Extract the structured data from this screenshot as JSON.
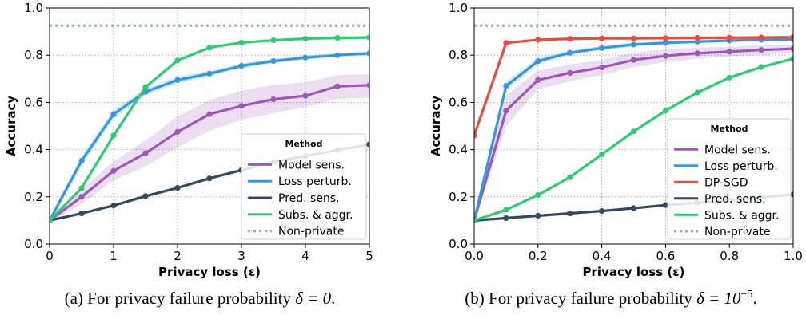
{
  "chart_data": [
    {
      "type": "line",
      "xlabel": "Privacy loss (ε)",
      "ylabel": "Accuracy",
      "xlim": [
        0,
        5
      ],
      "ylim": [
        0,
        1.0
      ],
      "xticks": [
        "0",
        "1",
        "2",
        "3",
        "4",
        "5"
      ],
      "yticks": [
        "0.0",
        "0.2",
        "0.4",
        "0.6",
        "0.8",
        "1.0"
      ],
      "grid": true,
      "legend_title": "Method",
      "legend_position": "lower-right",
      "series": [
        {
          "name": "Model sens.",
          "color": "#9b59b6",
          "band": true,
          "x": [
            0,
            0.5,
            1,
            1.5,
            2,
            2.5,
            3,
            3.5,
            4,
            4.5,
            5
          ],
          "y": [
            0.1,
            0.2,
            0.31,
            0.385,
            0.475,
            0.55,
            0.585,
            0.613,
            0.628,
            0.668,
            0.673
          ],
          "band_low": [
            0.09,
            0.17,
            0.27,
            0.33,
            0.41,
            0.48,
            0.525,
            0.555,
            0.58,
            0.615,
            0.62
          ],
          "band_high": [
            0.11,
            0.23,
            0.35,
            0.44,
            0.54,
            0.61,
            0.65,
            0.675,
            0.685,
            0.715,
            0.72
          ]
        },
        {
          "name": "Loss perturb.",
          "color": "#3498db",
          "band": true,
          "x": [
            0,
            0.5,
            1,
            1.5,
            2,
            2.5,
            3,
            3.5,
            4,
            4.5,
            5
          ],
          "y": [
            0.1,
            0.353,
            0.55,
            0.645,
            0.695,
            0.722,
            0.755,
            0.775,
            0.79,
            0.8,
            0.808
          ],
          "band_low": [
            0.09,
            0.33,
            0.53,
            0.63,
            0.68,
            0.71,
            0.745,
            0.765,
            0.782,
            0.792,
            0.8
          ],
          "band_high": [
            0.11,
            0.375,
            0.57,
            0.66,
            0.71,
            0.735,
            0.765,
            0.785,
            0.798,
            0.808,
            0.816
          ]
        },
        {
          "name": "Pred. sens.",
          "color": "#34495e",
          "band": false,
          "x": [
            0,
            0.5,
            1,
            1.5,
            2,
            2.5,
            3,
            3.5,
            4,
            4.5,
            5
          ],
          "y": [
            0.1,
            0.13,
            0.163,
            0.203,
            0.238,
            0.278,
            0.313,
            0.348,
            0.373,
            0.398,
            0.422
          ]
        },
        {
          "name": "Subs. & aggr.",
          "color": "#2ecc71",
          "band": false,
          "x": [
            0,
            0.5,
            1,
            1.5,
            2,
            2.5,
            3,
            3.5,
            4,
            4.5,
            5
          ],
          "y": [
            0.1,
            0.237,
            0.46,
            0.665,
            0.778,
            0.832,
            0.853,
            0.863,
            0.87,
            0.873,
            0.875
          ]
        },
        {
          "name": "Non-private",
          "color": "#95a5a6",
          "dashed": true,
          "band": false,
          "x": [
            0,
            5
          ],
          "y": [
            0.925,
            0.925
          ]
        }
      ]
    },
    {
      "type": "line",
      "xlabel": "Privacy loss (ε)",
      "ylabel": "Accuracy",
      "xlim": [
        0,
        1.0
      ],
      "ylim": [
        0,
        1.0
      ],
      "xticks": [
        "0.0",
        "0.2",
        "0.4",
        "0.6",
        "0.8",
        "1.0"
      ],
      "yticks": [
        "0.0",
        "0.2",
        "0.4",
        "0.6",
        "0.8",
        "1.0"
      ],
      "grid": true,
      "legend_title": "Method",
      "legend_position": "lower-right",
      "series": [
        {
          "name": "Model sens.",
          "color": "#9b59b6",
          "band": true,
          "x": [
            0,
            0.1,
            0.2,
            0.3,
            0.4,
            0.5,
            0.6,
            0.7,
            0.8,
            0.9,
            1.0
          ],
          "y": [
            0.1,
            0.565,
            0.695,
            0.725,
            0.748,
            0.78,
            0.797,
            0.808,
            0.815,
            0.822,
            0.827
          ],
          "band_low": [
            0.09,
            0.5,
            0.655,
            0.69,
            0.715,
            0.75,
            0.77,
            0.785,
            0.795,
            0.8,
            0.81
          ],
          "band_high": [
            0.11,
            0.63,
            0.735,
            0.76,
            0.78,
            0.81,
            0.825,
            0.832,
            0.835,
            0.842,
            0.845
          ]
        },
        {
          "name": "Loss perturb.",
          "color": "#3498db",
          "band": true,
          "x": [
            0,
            0.1,
            0.2,
            0.3,
            0.4,
            0.5,
            0.6,
            0.7,
            0.8,
            0.9,
            1.0
          ],
          "y": [
            0.1,
            0.67,
            0.775,
            0.81,
            0.83,
            0.845,
            0.852,
            0.857,
            0.862,
            0.865,
            0.867
          ],
          "band_low": [
            0.09,
            0.65,
            0.76,
            0.8,
            0.82,
            0.837,
            0.845,
            0.85,
            0.855,
            0.858,
            0.86
          ],
          "band_high": [
            0.11,
            0.69,
            0.79,
            0.82,
            0.84,
            0.853,
            0.859,
            0.864,
            0.869,
            0.872,
            0.874
          ]
        },
        {
          "name": "DP-SGD",
          "color": "#e74c3c",
          "band": false,
          "x": [
            0,
            0.1,
            0.2,
            0.3,
            0.4,
            0.5,
            0.6,
            0.7,
            0.8,
            0.9,
            1.0
          ],
          "y": [
            0.46,
            0.852,
            0.865,
            0.869,
            0.871,
            0.871,
            0.872,
            0.873,
            0.874,
            0.875,
            0.876
          ]
        },
        {
          "name": "Pred. sens.",
          "color": "#34495e",
          "band": false,
          "x": [
            0,
            0.1,
            0.2,
            0.3,
            0.4,
            0.5,
            0.6,
            0.7,
            0.8,
            0.9,
            1.0
          ],
          "y": [
            0.1,
            0.11,
            0.12,
            0.13,
            0.14,
            0.152,
            0.165,
            0.175,
            0.185,
            0.198,
            0.21
          ]
        },
        {
          "name": "Subs. & aggr.",
          "color": "#2ecc71",
          "band": false,
          "x": [
            0,
            0.1,
            0.2,
            0.3,
            0.4,
            0.5,
            0.6,
            0.7,
            0.8,
            0.9,
            1.0
          ],
          "y": [
            0.1,
            0.145,
            0.208,
            0.283,
            0.38,
            0.477,
            0.565,
            0.642,
            0.705,
            0.75,
            0.785
          ]
        },
        {
          "name": "Non-private",
          "color": "#95a5a6",
          "dashed": true,
          "band": false,
          "x": [
            0,
            1.0
          ],
          "y": [
            0.925,
            0.925
          ]
        }
      ]
    }
  ],
  "captions": [
    {
      "prefix": "(a) For privacy failure probability ",
      "math": "δ = 0",
      "suffix": "."
    },
    {
      "prefix": "(b) For privacy failure probability ",
      "math": "δ = 10",
      "sup": "−5",
      "suffix": "."
    }
  ]
}
